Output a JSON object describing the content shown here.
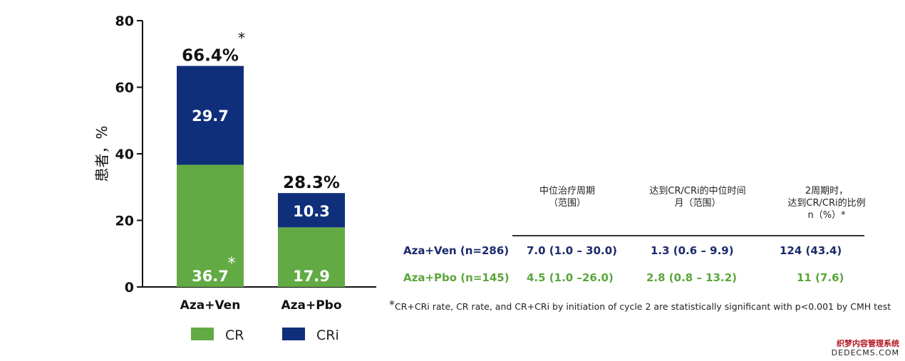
{
  "colors": {
    "cr": "#62ab44",
    "cri": "#102f7a",
    "ven_text": "#1b2a6b",
    "pbo_text": "#5aa63c"
  },
  "chart_data": {
    "type": "bar",
    "stacked": true,
    "categories": [
      "Aza+Ven",
      "Aza+Pbo"
    ],
    "series": [
      {
        "name": "CR",
        "values": [
          36.7,
          17.9
        ],
        "labels": [
          "36.7",
          "17.9"
        ]
      },
      {
        "name": "CRi",
        "values": [
          29.7,
          10.3
        ],
        "labels": [
          "29.7",
          "10.3"
        ]
      }
    ],
    "totals": [
      "66.4%",
      "28.3%"
    ],
    "total_markers": [
      "*",
      ""
    ],
    "cr_markers": [
      "*",
      ""
    ],
    "ylabel": "患者，%",
    "ylim": [
      0,
      80
    ],
    "yticks": [
      0,
      20,
      40,
      60,
      80
    ],
    "legend": [
      {
        "label": "CR"
      },
      {
        "label": "CRi"
      }
    ],
    "legend_position": "bottom"
  },
  "table": {
    "headers": [
      [
        "中位治疗周期",
        "（范围）"
      ],
      [
        "达到CR/CRi的中位时间",
        "月（范围）"
      ],
      [
        "2周期时，",
        "达到CR/CRi的比例",
        "n（%）*"
      ]
    ],
    "rows": [
      {
        "group": "Aza+Ven (n=286)",
        "cells": [
          "7.0 (1.0 – 30.0)",
          "1.3 (0.6 – 9.9)",
          "124 (43.4)"
        ]
      },
      {
        "group": "Aza+Pbo (n=145)",
        "cells": [
          "4.5 (1.0 –26.0)",
          "2.8 (0.8 – 13.2)",
          "11 (7.6)"
        ]
      }
    ]
  },
  "footnote": {
    "star": "*",
    "text": "CR+CRi rate, CR rate, and CR+CRi by initiation of cycle 2 are statistically significant with p<0.001 by CMH test"
  },
  "watermark": {
    "line1": "织梦内容管理系统",
    "line2": "DEDECMS.COM"
  }
}
